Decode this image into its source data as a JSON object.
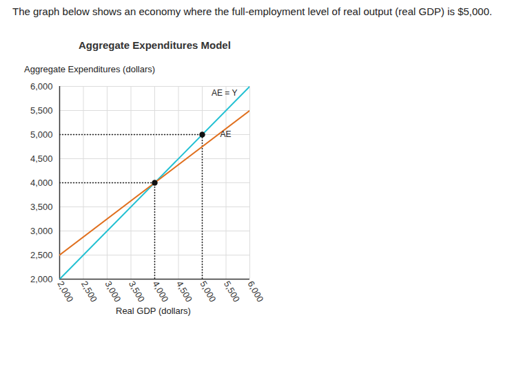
{
  "question": "The graph below shows an economy where the full-employment level of real output (real GDP) is $5,000.",
  "chart_data": {
    "type": "line",
    "title": "Aggregate Expenditures Model",
    "x_label": "Real GDP (dollars)",
    "y_label": "Aggregate Expenditures (dollars)",
    "xlim": [
      2000,
      6000
    ],
    "ylim": [
      2000,
      6000
    ],
    "xticks": [
      {
        "value": 2000,
        "label": "2,000"
      },
      {
        "value": 2500,
        "label": "2,500"
      },
      {
        "value": 3000,
        "label": "3,000"
      },
      {
        "value": 3500,
        "label": "3,500"
      },
      {
        "value": 4000,
        "label": "4,000"
      },
      {
        "value": 4500,
        "label": "4,500"
      },
      {
        "value": 5000,
        "label": "5,000"
      },
      {
        "value": 5500,
        "label": "5,500"
      },
      {
        "value": 6000,
        "label": "6,000"
      }
    ],
    "yticks": [
      {
        "value": 2000,
        "label": "2,000"
      },
      {
        "value": 2500,
        "label": "2,500"
      },
      {
        "value": 3000,
        "label": "3,000"
      },
      {
        "value": 3500,
        "label": "3,500"
      },
      {
        "value": 4000,
        "label": "4,000"
      },
      {
        "value": 4500,
        "label": "4,500"
      },
      {
        "value": 5000,
        "label": "5,000"
      },
      {
        "value": 5500,
        "label": "5,500"
      },
      {
        "value": 6000,
        "label": "6,000"
      }
    ],
    "grid": true,
    "x": [
      2000,
      6000
    ],
    "series": [
      {
        "name": "AE = Y",
        "color": "#22c0d2",
        "values": [
          2000,
          6000
        ]
      },
      {
        "name": "AE",
        "color": "#e0701f",
        "values": [
          2500,
          5500
        ]
      }
    ],
    "points": [
      {
        "x": 4000,
        "y": 4000
      },
      {
        "x": 5000,
        "y": 5000
      }
    ]
  }
}
